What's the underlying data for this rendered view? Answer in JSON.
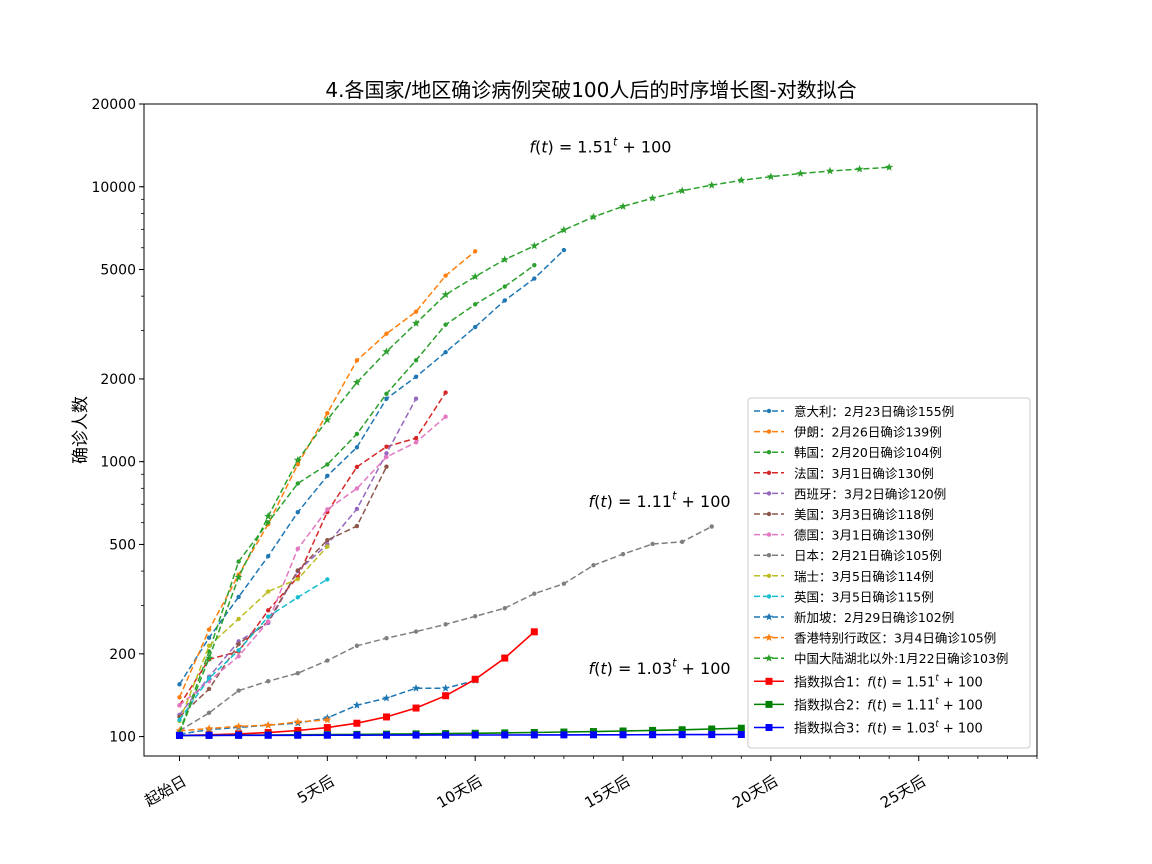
{
  "chart_data": {
    "type": "line",
    "title": "4.各国家/地区确诊病例突破100人后的时序增长图-对数拟合",
    "ylabel": "确诊人数",
    "xlabel": "",
    "y_scale": "log",
    "ylim": [
      85,
      20000
    ],
    "xlim": [
      -1.2,
      29
    ],
    "x_ticks": [
      {
        "x": 0,
        "label": "起始日"
      },
      {
        "x": 5,
        "label": "5天后"
      },
      {
        "x": 10,
        "label": "10天后"
      },
      {
        "x": 15,
        "label": "15天后"
      },
      {
        "x": 20,
        "label": "20天后"
      },
      {
        "x": 25,
        "label": "25天后"
      }
    ],
    "y_ticks": [
      {
        "y": 100,
        "label": "100"
      },
      {
        "y": 200,
        "label": "200"
      },
      {
        "y": 500,
        "label": "500"
      },
      {
        "y": 1000,
        "label": "1000"
      },
      {
        "y": 2000,
        "label": "2000"
      },
      {
        "y": 5000,
        "label": "5000"
      },
      {
        "y": 10000,
        "label": "10000"
      },
      {
        "y": 20000,
        "label": "20000"
      }
    ],
    "grid": false,
    "legend_position": "lower-right",
    "series": [
      {
        "name": "意大利：2月23日确诊155例",
        "color": "#1f77b4",
        "dash": true,
        "marker": "dot",
        "values": [
          155,
          229,
          322,
          453,
          655,
          888,
          1128,
          1694,
          2036,
          2502,
          3089,
          3858,
          4636,
          5883
        ]
      },
      {
        "name": "伊朗：2月26日确诊139例",
        "color": "#ff7f0e",
        "dash": true,
        "marker": "dot",
        "values": [
          139,
          245,
          388,
          593,
          978,
          1501,
          2336,
          2922,
          3513,
          4747,
          5823
        ]
      },
      {
        "name": "韩国：2月20日确诊104例",
        "color": "#2ca02c",
        "dash": true,
        "marker": "dot",
        "values": [
          104,
          204,
          433,
          602,
          833,
          977,
          1261,
          1766,
          2337,
          3150,
          3736,
          4335,
          5186
        ]
      },
      {
        "name": "法国：3月1日确诊130例",
        "color": "#d62728",
        "dash": true,
        "marker": "dot",
        "values": [
          130,
          191,
          204,
          288,
          380,
          656,
          957,
          1134,
          1217,
          1784
        ]
      },
      {
        "name": "西班牙：3月2日确诊120例",
        "color": "#9467bd",
        "dash": true,
        "marker": "dot",
        "values": [
          120,
          165,
          222,
          259,
          400,
          500,
          673,
          1073,
          1695
        ]
      },
      {
        "name": "美国：3月3日确诊118例",
        "color": "#8c564b",
        "dash": true,
        "marker": "dot",
        "values": [
          118,
          149,
          217,
          262,
          402,
          518,
          583,
          959
        ]
      },
      {
        "name": "德国：3月1日确诊130例",
        "color": "#e377c2",
        "dash": true,
        "marker": "dot",
        "values": [
          130,
          159,
          196,
          262,
          482,
          670,
          799,
          1040,
          1176,
          1457
        ]
      },
      {
        "name": "日本：2月21日确诊105例",
        "color": "#7f7f7f",
        "dash": true,
        "marker": "dot",
        "values": [
          105,
          122,
          147,
          159,
          170,
          189,
          214,
          228,
          241,
          256,
          274,
          293,
          331,
          360,
          420,
          461,
          502,
          511,
          581
        ]
      },
      {
        "name": "瑞士：3月5日确诊114例",
        "color": "#bcbd22",
        "dash": true,
        "marker": "dot",
        "values": [
          114,
          214,
          268,
          337,
          374,
          491
        ]
      },
      {
        "name": "英国：3月5日确诊115例",
        "color": "#17becf",
        "dash": true,
        "marker": "dot",
        "values": [
          115,
          163,
          206,
          273,
          321,
          373
        ]
      },
      {
        "name": "新加坡：2月29日确诊102例",
        "color": "#1f77b4",
        "dash": true,
        "marker": "star",
        "values": [
          102,
          106,
          108,
          110,
          112,
          117,
          130,
          138,
          150,
          150,
          160
        ]
      },
      {
        "name": "香港特别行政区：3月4日确诊105例",
        "color": "#ff7f0e",
        "dash": true,
        "marker": "star",
        "values": [
          105,
          107,
          109,
          110,
          113,
          115
        ]
      },
      {
        "name": "中国大陆湖北以外:1月22日确诊103例",
        "color": "#2ca02c",
        "dash": true,
        "marker": "star",
        "values": [
          103,
          193,
          380,
          633,
          1013,
          1420,
          1943,
          2515,
          3187,
          4049,
          4711,
          5434,
          6094,
          6962,
          7769,
          8480,
          9090,
          9675,
          10130,
          10560,
          10880,
          11170,
          11410,
          11590,
          11770
        ]
      },
      {
        "name": "指数拟合1：f(t)=1.51^t+100",
        "color": "#ff0000",
        "dash": false,
        "marker": "square",
        "base": 1.51,
        "t_max": 12
      },
      {
        "name": "指数拟合2：f(t)=1.11^t+100",
        "color": "#008000",
        "dash": false,
        "marker": "square",
        "base": 1.11,
        "t_max": 19
      },
      {
        "name": "指数拟合3：f(t)=1.03^t+100",
        "color": "#0000ff",
        "dash": false,
        "marker": "square",
        "base": 1.03,
        "t_max": 19
      }
    ],
    "annotations": [
      {
        "text": "f(t)=1.51^t+100",
        "x": 12,
        "y": 14000,
        "base": "1.51"
      },
      {
        "text": "f(t)=1.11^t+100",
        "x": 14,
        "y": 720,
        "base": "1.11"
      },
      {
        "text": "f(t)=1.03^t+100",
        "x": 14,
        "y": 178,
        "base": "1.03"
      }
    ]
  }
}
